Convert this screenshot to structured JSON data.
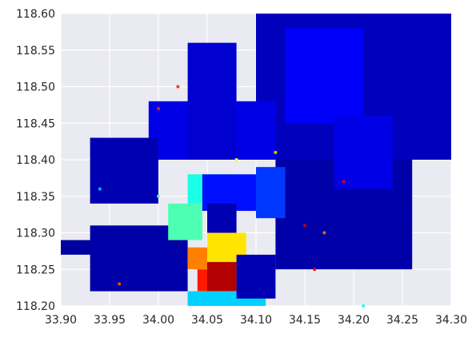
{
  "chart_data": {
    "type": "scatter",
    "title": "",
    "xlabel": "",
    "ylabel": "",
    "xlim": [
      33.9,
      34.3
    ],
    "ylim": [
      118.2,
      118.6
    ],
    "x_ticks": [
      "33.90",
      "33.95",
      "34.00",
      "34.05",
      "34.10",
      "34.15",
      "34.20",
      "34.25",
      "34.30"
    ],
    "y_ticks": [
      "118.20",
      "118.25",
      "118.30",
      "118.35",
      "118.40",
      "118.45",
      "118.50",
      "118.55",
      "118.60"
    ],
    "x_tick_values": [
      33.9,
      33.95,
      34.0,
      34.05,
      34.1,
      34.15,
      34.2,
      34.25,
      34.3
    ],
    "y_tick_values": [
      118.2,
      118.25,
      118.3,
      118.35,
      118.4,
      118.45,
      118.5,
      118.55,
      118.6
    ],
    "grid": true,
    "colormap": "jet",
    "colors": {
      "background": "#eaeaf2",
      "grid": "#ffffff",
      "tick_text": "#262626"
    },
    "regions": [
      {
        "x": [
          34.1,
          34.3
        ],
        "y": [
          118.4,
          118.6
        ],
        "value": 0.06
      },
      {
        "x": [
          34.12,
          34.26
        ],
        "y": [
          118.25,
          118.4
        ],
        "value": 0.04
      },
      {
        "x": [
          34.13,
          34.21
        ],
        "y": [
          118.45,
          118.58
        ],
        "value": 0.12
      },
      {
        "x": [
          34.18,
          34.24
        ],
        "y": [
          118.36,
          118.46
        ],
        "value": 0.1
      },
      {
        "x": [
          33.99,
          34.12
        ],
        "y": [
          118.4,
          118.48
        ],
        "value": 0.1
      },
      {
        "x": [
          34.03,
          34.08
        ],
        "y": [
          118.4,
          118.56
        ],
        "value": 0.08
      },
      {
        "x": [
          33.93,
          34.0
        ],
        "y": [
          118.34,
          118.43
        ],
        "value": 0.05
      },
      {
        "x": [
          33.9,
          33.99
        ],
        "y": [
          118.27,
          118.29
        ],
        "value": 0.03
      },
      {
        "x": [
          33.93,
          34.03
        ],
        "y": [
          118.22,
          118.31
        ],
        "value": 0.04
      },
      {
        "x": [
          34.03,
          34.08
        ],
        "y": [
          118.34,
          118.38
        ],
        "value": 0.4
      },
      {
        "x": [
          34.01,
          34.045
        ],
        "y": [
          118.29,
          118.34
        ],
        "value": 0.45
      },
      {
        "x": [
          34.045,
          34.1
        ],
        "y": [
          118.33,
          118.38
        ],
        "value": 0.14
      },
      {
        "x": [
          34.05,
          34.08
        ],
        "y": [
          118.29,
          118.34
        ],
        "value": 0.05
      },
      {
        "x": [
          34.1,
          34.13
        ],
        "y": [
          118.32,
          118.39
        ],
        "value": 0.18
      },
      {
        "x": [
          34.05,
          34.09
        ],
        "y": [
          118.26,
          118.3
        ],
        "value": 0.65
      },
      {
        "x": [
          34.03,
          34.05
        ],
        "y": [
          118.25,
          118.28
        ],
        "value": 0.75
      },
      {
        "x": [
          34.04,
          34.07
        ],
        "y": [
          118.22,
          118.25
        ],
        "value": 0.85
      },
      {
        "x": [
          34.05,
          34.08
        ],
        "y": [
          118.22,
          118.26
        ],
        "value": 0.95
      },
      {
        "x": [
          34.03,
          34.11
        ],
        "y": [
          118.2,
          118.22
        ],
        "value": 0.33
      },
      {
        "x": [
          34.08,
          34.12
        ],
        "y": [
          118.21,
          118.27
        ],
        "value": 0.05
      }
    ],
    "points": [
      {
        "x": 34.15,
        "y": 118.31,
        "value": 0.93
      },
      {
        "x": 34.17,
        "y": 118.3,
        "value": 0.78
      },
      {
        "x": 34.19,
        "y": 118.37,
        "value": 0.9
      },
      {
        "x": 34.0,
        "y": 118.47,
        "value": 0.85
      },
      {
        "x": 34.02,
        "y": 118.5,
        "value": 0.82
      },
      {
        "x": 33.96,
        "y": 118.23,
        "value": 0.8
      },
      {
        "x": 34.21,
        "y": 118.2,
        "value": 0.4
      },
      {
        "x": 34.0,
        "y": 118.35,
        "value": 0.45
      },
      {
        "x": 33.94,
        "y": 118.36,
        "value": 0.3
      },
      {
        "x": 34.16,
        "y": 118.25,
        "value": 0.88
      },
      {
        "x": 34.12,
        "y": 118.41,
        "value": 0.7
      },
      {
        "x": 34.08,
        "y": 118.4,
        "value": 0.6
      }
    ]
  }
}
